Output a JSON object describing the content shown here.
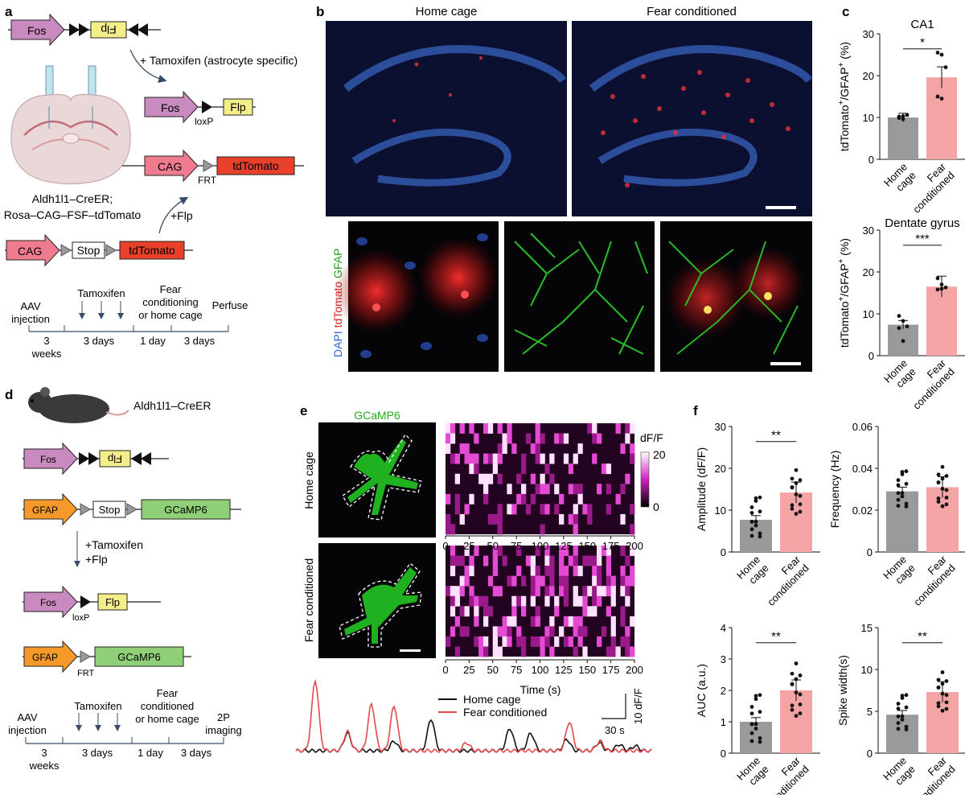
{
  "panels": {
    "a": "a",
    "b": "b",
    "c": "c",
    "d": "d",
    "e": "e",
    "f": "f"
  },
  "panel_a": {
    "tamoxifen_note": "+ Tamoxifen (astrocyte specific)",
    "mouse_line": "Aldh1l1–CreER;",
    "reporter_line": "Rosa–CAG–FSF–tdTomato",
    "flp_note": "+Flp",
    "constructs": {
      "fos": "Fos",
      "flp": "Flp",
      "loxp": "loxP",
      "cag": "CAG",
      "frt": "FRT",
      "tdtomato": "tdTomato",
      "stop": "Stop"
    },
    "timeline": {
      "labels_top": [
        "AAV",
        "injection",
        "Tamoxifen",
        "Fear",
        "conditioning",
        "or home cage",
        "Perfuse"
      ],
      "durations": [
        "3",
        "weeks",
        "3 days",
        "1 day",
        "3 days"
      ]
    }
  },
  "panel_b": {
    "col1": "Home cage",
    "col2": "Fear conditioned",
    "stain_dapi": "DAPI",
    "stain_tdtomato": "tdTomato",
    "stain_gfap": "GFAP"
  },
  "panel_c": {
    "ylabel_pre": "tdTomato",
    "ylabel_mid": "/GFAP",
    "ylabel_post": " (%)",
    "sup": "+",
    "groups": [
      "Home",
      "cage",
      "Fear",
      "conditioned"
    ],
    "ca1": {
      "title": "CA1",
      "sig": "*",
      "ylim": [
        0,
        30
      ],
      "ticks": [
        "0",
        "10",
        "20",
        "30"
      ],
      "values": [
        10.0,
        19.6
      ],
      "points": [
        [
          10.2,
          9.6,
          10.6,
          9.9,
          10.3
        ],
        [
          25.5,
          25.0,
          22.0,
          15.0,
          14.5
        ]
      ]
    },
    "dg": {
      "title": "Dentate gyrus",
      "sig": "***",
      "ylim": [
        0,
        30
      ],
      "ticks": [
        "0",
        "10",
        "20",
        "30"
      ],
      "values": [
        7.4,
        16.5
      ],
      "points": [
        [
          9.5,
          8.3,
          7.0,
          6.6,
          3.5
        ],
        [
          18.5,
          17.0,
          16.3,
          15.8,
          16.0
        ]
      ]
    }
  },
  "panel_d": {
    "mouse_line": "Aldh1l1–CreER",
    "constructs": {
      "fos": "Fos",
      "flp": "Flp",
      "gfap": "GFAP",
      "stop": "Stop",
      "gcamp": "GCaMP6",
      "loxp": "loxP",
      "frt": "FRT"
    },
    "treat1": "+Tamoxifen",
    "treat2": "+Flp",
    "timeline": {
      "labels_top": [
        "AAV",
        "injection",
        "Tamoxifen",
        "Fear",
        "conditioned",
        "or home cage",
        "2P",
        "imaging"
      ],
      "durations": [
        "3",
        "weeks",
        "3 days",
        "1 day",
        "3 days"
      ]
    }
  },
  "panel_e": {
    "indicator": "GCaMP6",
    "row1": "Home cage",
    "row2": "Fear conditioned",
    "cbar_label": "dF/F",
    "cbar_max": "20",
    "cbar_min": "0",
    "xticks": [
      "0",
      "25",
      "50",
      "75",
      "100",
      "125",
      "150",
      "175",
      "200"
    ],
    "xlabel": "Time (s)",
    "legend_home": "Home cage",
    "legend_fear": "Fear conditioned",
    "scale_time": "30 s",
    "scale_amp": "10 dF/F",
    "colors": {
      "home": "#111111",
      "fear": "#e5484d"
    }
  },
  "panel_f": {
    "groups": [
      "Home",
      "cage",
      "Fear",
      "conditioned"
    ],
    "colors": {
      "home": "#9a9a9a",
      "fear": "#f4a4a4"
    },
    "amplitude": {
      "ylabel": "Amplitude (dF/F)",
      "sig": "**",
      "ylim": [
        0,
        30
      ],
      "ticks": [
        "0",
        "10",
        "20",
        "30"
      ],
      "values": [
        7.7,
        14.2
      ]
    },
    "frequency": {
      "ylabel": "Frequency (Hz)",
      "sig": "",
      "ylim": [
        0,
        0.06
      ],
      "ticks": [
        "0",
        "0.02",
        "0.04",
        "0.06"
      ],
      "values": [
        0.029,
        0.031
      ]
    },
    "auc": {
      "ylabel": "AUC (a.u.)",
      "sig": "**",
      "ylim": [
        0,
        4
      ],
      "ticks": [
        "0",
        "1",
        "2",
        "3",
        "4"
      ],
      "values": [
        1.0,
        2.0
      ]
    },
    "spike_width": {
      "ylabel": "Spike width(s)",
      "sig": "**",
      "ylim": [
        0,
        15
      ],
      "ticks": [
        "0",
        "5",
        "10",
        "15"
      ],
      "values": [
        4.6,
        7.3
      ]
    }
  }
}
